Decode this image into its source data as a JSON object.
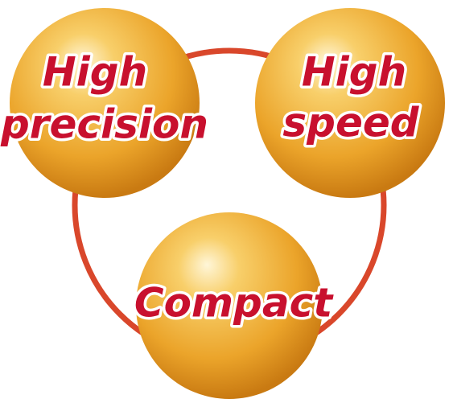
{
  "nodes": [
    {
      "lines": [
        "High",
        "precision"
      ]
    },
    {
      "lines": [
        "High",
        "speed"
      ]
    },
    {
      "lines": [
        "Compact"
      ]
    }
  ]
}
